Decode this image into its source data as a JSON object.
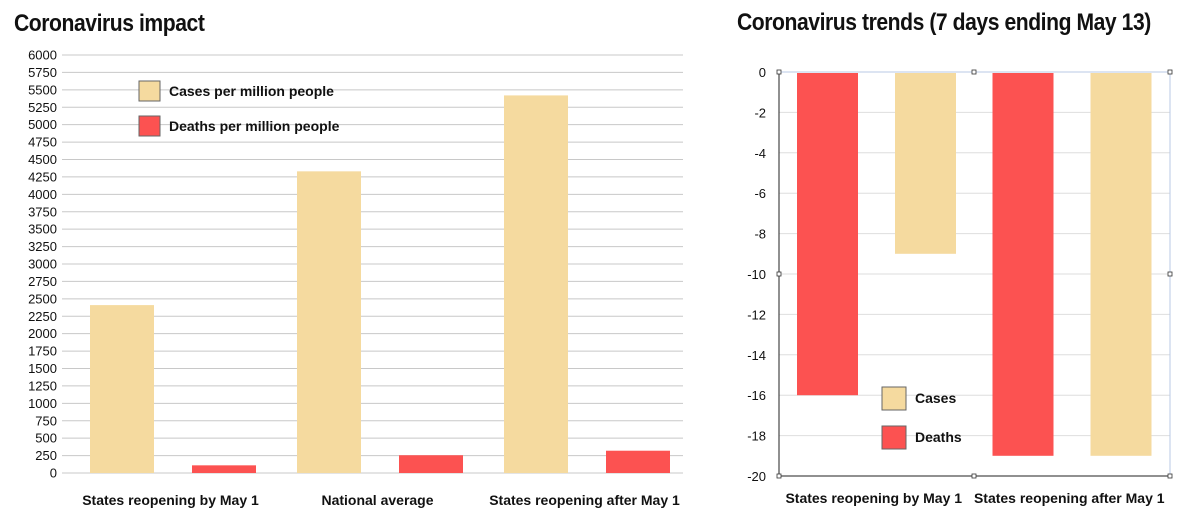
{
  "colors": {
    "cases": "#f5da9f",
    "deaths": "#fc5251",
    "grid": "#c8c8c8"
  },
  "chart_data": [
    {
      "type": "bar",
      "title": "Coronavirus impact",
      "categories": [
        "States reopening by May 1",
        "National average",
        "States reopening after May 1"
      ],
      "series": [
        {
          "name": "Cases per million people",
          "values": [
            2410,
            4330,
            5420
          ]
        },
        {
          "name": "Deaths per million people",
          "values": [
            110,
            255,
            320
          ]
        }
      ],
      "ylim": [
        0,
        6000
      ],
      "yticks": [
        0,
        250,
        500,
        750,
        1000,
        1250,
        1500,
        1750,
        2000,
        2250,
        2500,
        2750,
        3000,
        3250,
        3500,
        3750,
        4000,
        4250,
        4500,
        4750,
        5000,
        5250,
        5500,
        5750,
        6000
      ],
      "grid": true,
      "legend": "top-left"
    },
    {
      "type": "bar",
      "title": "Coronavirus trends (7 days ending May 13)",
      "categories": [
        "States reopening by May 1",
        "States reopening after May 1"
      ],
      "series": [
        {
          "name": "Deaths",
          "values": [
            -16,
            -19
          ]
        },
        {
          "name": "Cases",
          "values": [
            -9,
            -19
          ]
        }
      ],
      "ylim": [
        -20,
        0
      ],
      "yticks": [
        0,
        -2,
        -4,
        -6,
        -8,
        -10,
        -12,
        -14,
        -16,
        -18,
        -20
      ],
      "grid": true,
      "legend": "bottom-left"
    }
  ]
}
